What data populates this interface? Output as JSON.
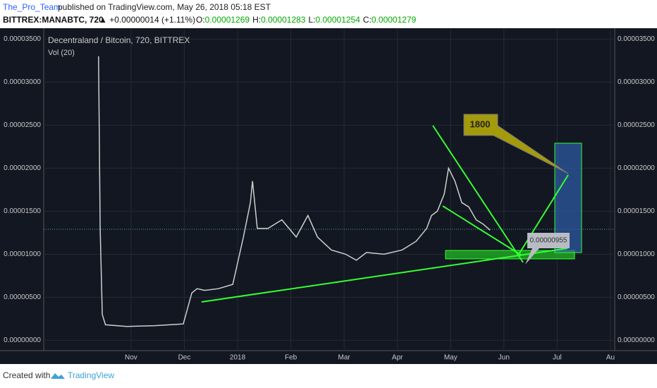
{
  "header": {
    "author": "The_Pro_Team",
    "published": "published on TradingView.com, May 26, 2018 05:18 EST",
    "symbol": "BITTREX:MANABTC, 720",
    "change": "▲ +0.00000014 (+1.11%)",
    "ohlc": [
      {
        "label": "O:",
        "value": "0.00001269"
      },
      {
        "label": "H:",
        "value": "0.00001283"
      },
      {
        "label": "L:",
        "value": "0.00001254"
      },
      {
        "label": "C:",
        "value": "0.00001279"
      }
    ]
  },
  "chart_data": {
    "type": "line",
    "title": "Decentraland / Bitcoin, 720, BITTREX",
    "subtitle": "Vol (20)",
    "series": [
      {
        "name": "MANABTC",
        "color": "#c9d1cd",
        "x": [
          0.39,
          0.42,
          0.46,
          0.52,
          0.92,
          1.45,
          1.98,
          2.14,
          2.24,
          2.38,
          2.64,
          2.91,
          3.11,
          3.24,
          3.28,
          3.37,
          3.57,
          3.83,
          4.1,
          4.32,
          4.5,
          4.76,
          5.03,
          5.23,
          5.42,
          5.75,
          6.09,
          6.35,
          6.55,
          6.64,
          6.75,
          6.88,
          6.96,
          7.08,
          7.21,
          7.34,
          7.48,
          7.61,
          7.74
        ],
        "values": [
          3.3e-05,
          1.3e-05,
          3e-06,
          1.8e-06,
          1.6e-06,
          1.7e-06,
          1.9e-06,
          5.5e-06,
          6e-06,
          5.8e-06,
          6e-06,
          6.5e-06,
          1.2e-05,
          1.6e-05,
          1.85e-05,
          1.3e-05,
          1.3e-05,
          1.4e-05,
          1.2e-05,
          1.45e-05,
          1.2e-05,
          1.05e-05,
          1e-05,
          9.3e-06,
          1.02e-05,
          1e-05,
          1.05e-05,
          1.15e-05,
          1.3e-05,
          1.45e-05,
          1.5e-05,
          1.7e-05,
          2e-05,
          1.85e-05,
          1.6e-05,
          1.55e-05,
          1.4e-05,
          1.35e-05,
          1.28e-05
        ]
      }
    ],
    "xlim": [
      -0.64,
      10.08
    ],
    "xticks": [
      {
        "value": 1,
        "label": "Nov"
      },
      {
        "value": 2,
        "label": "Dec"
      },
      {
        "value": 3,
        "label": "2018"
      },
      {
        "value": 4,
        "label": "Feb"
      },
      {
        "value": 5,
        "label": "Mar"
      },
      {
        "value": 6,
        "label": "Apr"
      },
      {
        "value": 7,
        "label": "May"
      },
      {
        "value": 8,
        "label": "Jun"
      },
      {
        "value": 9,
        "label": "Jul"
      },
      {
        "value": 10,
        "label": "Au"
      }
    ],
    "ylim": [
      -1.2e-06,
      3.61e-05
    ],
    "yticks": [
      {
        "value": 0,
        "label": "0.00000000"
      },
      {
        "value": 5e-06,
        "label": "0.00000500"
      },
      {
        "value": 1e-05,
        "label": "0.00001000"
      },
      {
        "value": 1.5e-05,
        "label": "0.00001500"
      },
      {
        "value": 2e-05,
        "label": "0.00002000"
      },
      {
        "value": 2.5e-05,
        "label": "0.00002500"
      },
      {
        "value": 3e-05,
        "label": "0.00003000"
      },
      {
        "value": 3.5e-05,
        "label": "0.00003500"
      }
    ],
    "grid": true,
    "annotations": [
      "1800",
      "0.00000955"
    ]
  },
  "footer": {
    "created": "Created with",
    "brand": "TradingView"
  }
}
